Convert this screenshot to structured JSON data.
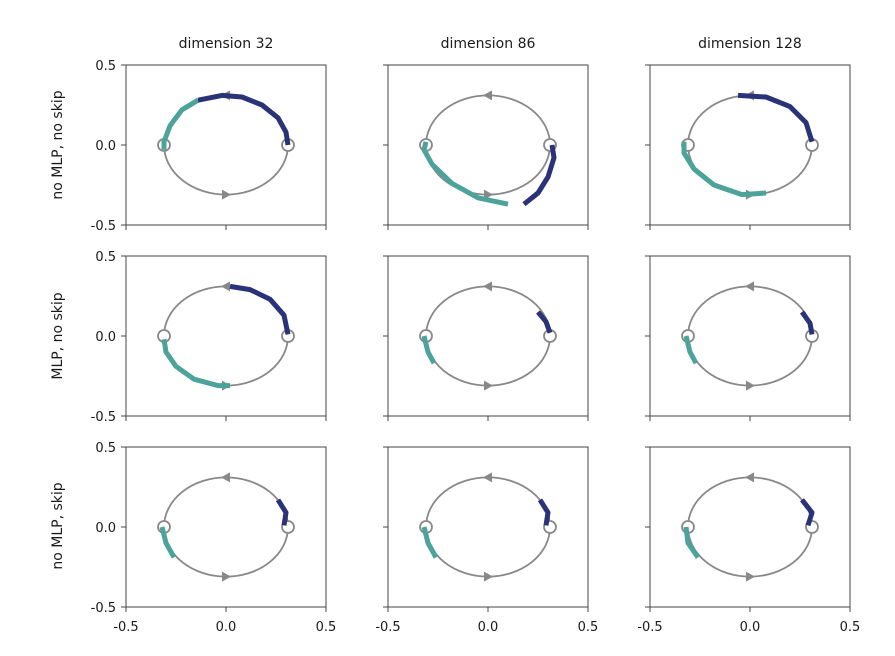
{
  "chart_data": {
    "type": "line",
    "description_labels": {
      "columns": [
        "dimension 32",
        "dimension 86",
        "dimension 128"
      ],
      "rows": [
        "no MLP, no skip",
        "MLP, no skip",
        "no MLP, skip"
      ]
    },
    "x_ticks": [
      "-0.5",
      "0.0",
      "0.5"
    ],
    "y_ticks": [
      "0.5",
      "0.0",
      "-0.5"
    ],
    "xlim": [
      -0.5,
      0.5
    ],
    "ylim": [
      -0.5,
      0.5
    ],
    "colors": {
      "circle": "#888888",
      "series_a": "#2a3278",
      "series_b": "#4ba399"
    },
    "reference_circle": {
      "radius_x": 0.31,
      "radius_y": 0.31,
      "cx": 0.0,
      "cy": 0.0
    },
    "panels": [
      {
        "row": 0,
        "col": 0,
        "series_a": {
          "points": [
            [
              0.31,
              0.0
            ],
            [
              0.3,
              0.08
            ],
            [
              0.26,
              0.17
            ],
            [
              0.18,
              0.25
            ],
            [
              0.08,
              0.3
            ],
            [
              -0.02,
              0.31
            ],
            [
              -0.14,
              0.28
            ]
          ]
        },
        "series_b": {
          "points": [
            [
              -0.14,
              0.28
            ],
            [
              -0.22,
              0.22
            ],
            [
              -0.28,
              0.12
            ],
            [
              -0.31,
              0.02
            ],
            [
              -0.31,
              -0.03
            ]
          ]
        }
      },
      {
        "row": 0,
        "col": 1,
        "series_a": {
          "points": [
            [
              0.18,
              -0.37
            ],
            [
              0.25,
              -0.3
            ],
            [
              0.3,
              -0.2
            ],
            [
              0.33,
              -0.08
            ],
            [
              0.32,
              0.0
            ]
          ]
        },
        "series_b": {
          "points": [
            [
              -0.31,
              0.02
            ],
            [
              -0.32,
              -0.03
            ],
            [
              -0.28,
              -0.12
            ],
            [
              -0.18,
              -0.24
            ],
            [
              -0.05,
              -0.33
            ],
            [
              0.1,
              -0.37
            ]
          ]
        }
      },
      {
        "row": 0,
        "col": 2,
        "series_a": {
          "points": [
            [
              -0.06,
              0.31
            ],
            [
              0.08,
              0.3
            ],
            [
              0.2,
              0.24
            ],
            [
              0.28,
              0.14
            ],
            [
              0.31,
              0.02
            ]
          ]
        },
        "series_b": {
          "points": [
            [
              -0.33,
              0.02
            ],
            [
              -0.33,
              -0.05
            ],
            [
              -0.28,
              -0.15
            ],
            [
              -0.18,
              -0.25
            ],
            [
              -0.04,
              -0.31
            ],
            [
              0.08,
              -0.3
            ]
          ]
        }
      },
      {
        "row": 1,
        "col": 0,
        "series_a": {
          "points": [
            [
              0.02,
              0.31
            ],
            [
              0.12,
              0.29
            ],
            [
              0.22,
              0.23
            ],
            [
              0.29,
              0.13
            ],
            [
              0.31,
              0.01
            ]
          ]
        },
        "series_b": {
          "points": [
            [
              -0.31,
              -0.02
            ],
            [
              -0.3,
              -0.1
            ],
            [
              -0.25,
              -0.19
            ],
            [
              -0.16,
              -0.27
            ],
            [
              -0.04,
              -0.31
            ],
            [
              0.02,
              -0.31
            ]
          ]
        }
      },
      {
        "row": 1,
        "col": 1,
        "series_a": {
          "points": [
            [
              0.25,
              0.15
            ],
            [
              0.29,
              0.09
            ],
            [
              0.31,
              0.02
            ]
          ]
        },
        "series_b": {
          "points": [
            [
              -0.32,
              0.0
            ],
            [
              -0.3,
              -0.1
            ],
            [
              -0.27,
              -0.17
            ]
          ]
        }
      },
      {
        "row": 1,
        "col": 2,
        "series_a": {
          "points": [
            [
              0.26,
              0.15
            ],
            [
              0.3,
              0.08
            ],
            [
              0.31,
              0.01
            ]
          ]
        },
        "series_b": {
          "points": [
            [
              -0.32,
              0.0
            ],
            [
              -0.3,
              -0.1
            ],
            [
              -0.27,
              -0.17
            ]
          ]
        }
      },
      {
        "row": 2,
        "col": 0,
        "series_a": {
          "points": [
            [
              0.26,
              0.17
            ],
            [
              0.3,
              0.09
            ],
            [
              0.29,
              0.01
            ]
          ]
        },
        "series_b": {
          "points": [
            [
              -0.32,
              0.0
            ],
            [
              -0.3,
              -0.1
            ],
            [
              -0.26,
              -0.19
            ]
          ]
        }
      },
      {
        "row": 2,
        "col": 1,
        "series_a": {
          "points": [
            [
              0.26,
              0.17
            ],
            [
              0.3,
              0.09
            ],
            [
              0.29,
              0.01
            ]
          ]
        },
        "series_b": {
          "points": [
            [
              -0.32,
              0.0
            ],
            [
              -0.3,
              -0.1
            ],
            [
              -0.26,
              -0.19
            ]
          ]
        }
      },
      {
        "row": 2,
        "col": 2,
        "series_a": {
          "points": [
            [
              0.26,
              0.17
            ],
            [
              0.31,
              0.09
            ],
            [
              0.29,
              0.01
            ]
          ]
        },
        "series_b": {
          "points": [
            [
              -0.32,
              0.0
            ],
            [
              -0.31,
              -0.1
            ],
            [
              -0.26,
              -0.19
            ]
          ]
        }
      }
    ]
  }
}
